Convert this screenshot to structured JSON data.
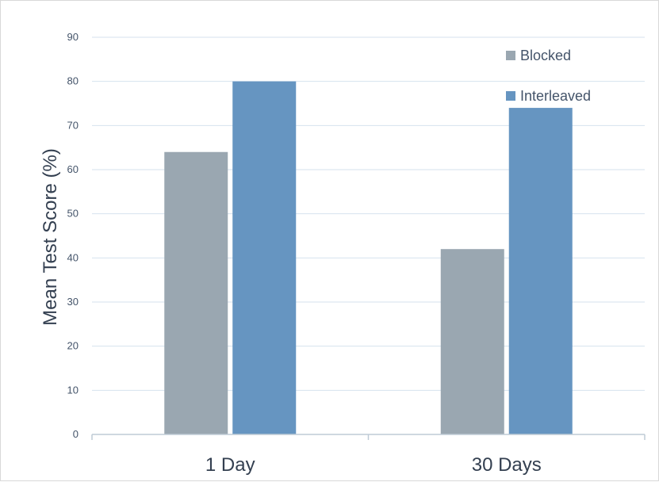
{
  "chart_data": {
    "type": "bar",
    "categories": [
      "1 Day",
      "30 Days"
    ],
    "series": [
      {
        "name": "Blocked",
        "values": [
          64,
          42
        ],
        "color": "#9aa7b1"
      },
      {
        "name": "Interleaved",
        "values": [
          80,
          74
        ],
        "color": "#6695c1"
      }
    ],
    "ylabel": "Mean Test Score (%)",
    "xlabel": "",
    "ylim": [
      0,
      90
    ],
    "yticks": [
      0,
      10,
      20,
      30,
      40,
      50,
      60,
      70,
      80,
      90
    ],
    "grid": true,
    "legend_position": "top-right",
    "colors": {
      "grid": "#d6e2ee",
      "axis": "#bfcbd6",
      "text": "#44546a"
    }
  }
}
